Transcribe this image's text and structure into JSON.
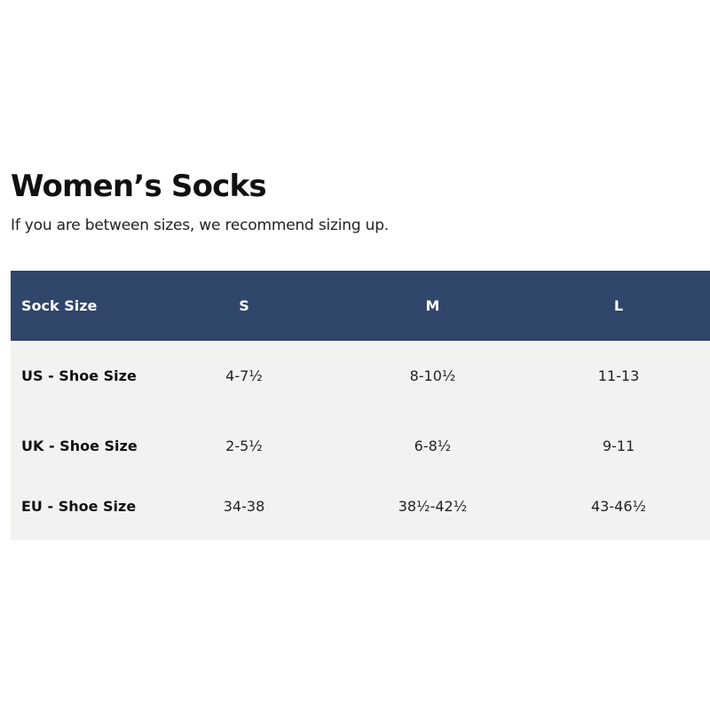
{
  "page": {
    "title": "Women’s Socks",
    "subtitle": "If you are between sizes, we recommend sizing up."
  },
  "size_table": {
    "header": {
      "label": "Sock Size",
      "columns": [
        "S",
        "M",
        "L"
      ]
    },
    "rows": [
      {
        "label": "US - Shoe Size",
        "values": [
          "4-7½",
          "8-10½",
          "11-13"
        ]
      },
      {
        "label": "UK - Shoe Size",
        "values": [
          "2-5½",
          "6-8½",
          "9-11"
        ]
      },
      {
        "label": "EU - Shoe Size",
        "values": [
          "34-38",
          "38½-42½",
          "43-46½"
        ]
      }
    ],
    "colors": {
      "header_background": "#30466a",
      "header_text": "#ffffff",
      "body_background": "#f2f2f1"
    }
  }
}
